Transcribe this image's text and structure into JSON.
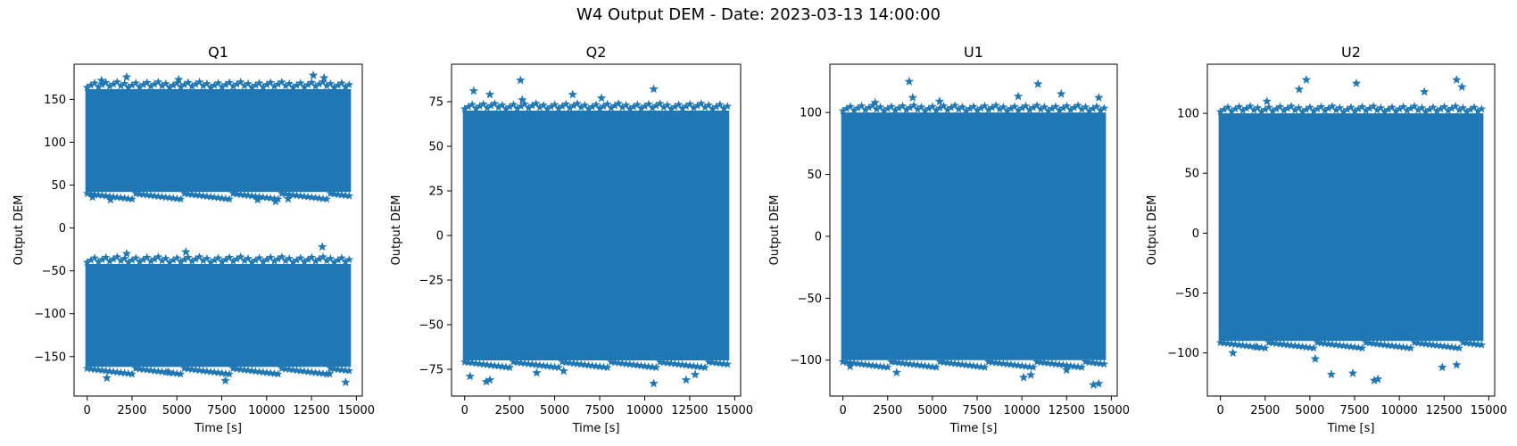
{
  "figure": {
    "suptitle": "W4 Output DEM - Date: 2023-03-13 14:00:00"
  },
  "chart_data": [
    {
      "type": "scatter",
      "title": "Q1",
      "xlabel": "Time [s]",
      "ylabel": "Output DEM",
      "marker": "star",
      "color": "#1f77b4",
      "xlim": [
        -730,
        15330
      ],
      "ylim": [
        -196,
        191
      ],
      "xticks": [
        0,
        2500,
        5000,
        7500,
        10000,
        12500,
        15000
      ],
      "yticks": [
        -150,
        -100,
        -50,
        0,
        50,
        100,
        150
      ],
      "x_range": [
        0,
        14600
      ],
      "bands": [
        {
          "min": 42,
          "max": 162
        },
        {
          "min": -162,
          "max": -42
        }
      ],
      "outliers": [
        {
          "x": 2200,
          "y": 176
        },
        {
          "x": 12600,
          "y": 178
        },
        {
          "x": 13200,
          "y": 175
        },
        {
          "x": 800,
          "y": 172
        },
        {
          "x": 5100,
          "y": 173
        },
        {
          "x": 300,
          "y": 36
        },
        {
          "x": 1300,
          "y": 33
        },
        {
          "x": 9500,
          "y": 33
        },
        {
          "x": 10500,
          "y": 31
        },
        {
          "x": 11200,
          "y": 34
        },
        {
          "x": 13100,
          "y": -22
        },
        {
          "x": 2200,
          "y": -30
        },
        {
          "x": 5500,
          "y": -28
        },
        {
          "x": 1100,
          "y": -175
        },
        {
          "x": 7700,
          "y": -178
        },
        {
          "x": 14400,
          "y": -180
        },
        {
          "x": 13500,
          "y": -170
        },
        {
          "x": 4500,
          "y": -168
        }
      ]
    },
    {
      "type": "scatter",
      "title": "Q2",
      "xlabel": "Time [s]",
      "ylabel": "Output DEM",
      "marker": "star",
      "color": "#1f77b4",
      "xlim": [
        -730,
        15330
      ],
      "ylim": [
        -90,
        96
      ],
      "xticks": [
        0,
        2500,
        5000,
        7500,
        10000,
        12500,
        15000
      ],
      "yticks": [
        -75,
        -50,
        -25,
        0,
        25,
        50,
        75
      ],
      "x_range": [
        0,
        14600
      ],
      "bands": [
        {
          "min": -70,
          "max": 70
        }
      ],
      "outliers": [
        {
          "x": 3100,
          "y": 87
        },
        {
          "x": 500,
          "y": 81
        },
        {
          "x": 10500,
          "y": 82
        },
        {
          "x": 3200,
          "y": 76
        },
        {
          "x": 1400,
          "y": 79
        },
        {
          "x": 6000,
          "y": 79
        },
        {
          "x": 7600,
          "y": 77
        },
        {
          "x": 300,
          "y": -79
        },
        {
          "x": 1200,
          "y": -82
        },
        {
          "x": 1400,
          "y": -81
        },
        {
          "x": 10500,
          "y": -83
        },
        {
          "x": 12300,
          "y": -81
        },
        {
          "x": 12800,
          "y": -78
        },
        {
          "x": 4000,
          "y": -77
        },
        {
          "x": 5500,
          "y": -76
        }
      ]
    },
    {
      "type": "scatter",
      "title": "U1",
      "xlabel": "Time [s]",
      "ylabel": "Output DEM",
      "marker": "star",
      "color": "#1f77b4",
      "xlim": [
        -730,
        15330
      ],
      "ylim": [
        -129,
        139
      ],
      "xticks": [
        0,
        2500,
        5000,
        7500,
        10000,
        12500,
        15000
      ],
      "yticks": [
        -100,
        -50,
        0,
        50,
        100
      ],
      "x_range": [
        0,
        14600
      ],
      "bands": [
        {
          "min": -100,
          "max": 100
        }
      ],
      "outliers": [
        {
          "x": 3700,
          "y": 125
        },
        {
          "x": 10900,
          "y": 123
        },
        {
          "x": 9800,
          "y": 113
        },
        {
          "x": 12200,
          "y": 115
        },
        {
          "x": 3900,
          "y": 112
        },
        {
          "x": 14300,
          "y": 112
        },
        {
          "x": 5400,
          "y": 109
        },
        {
          "x": 1800,
          "y": 108
        },
        {
          "x": 400,
          "y": -105
        },
        {
          "x": 3000,
          "y": -110
        },
        {
          "x": 10100,
          "y": -114
        },
        {
          "x": 10500,
          "y": -112
        },
        {
          "x": 14000,
          "y": -120
        },
        {
          "x": 14300,
          "y": -119
        },
        {
          "x": 12500,
          "y": -108
        }
      ]
    },
    {
      "type": "scatter",
      "title": "U2",
      "xlabel": "Time [s]",
      "ylabel": "Output DEM",
      "marker": "star",
      "color": "#1f77b4",
      "xlim": [
        -730,
        15330
      ],
      "ylim": [
        -136,
        141
      ],
      "xticks": [
        0,
        2500,
        5000,
        7500,
        10000,
        12500,
        15000
      ],
      "yticks": [
        -100,
        -50,
        0,
        50,
        100
      ],
      "x_range": [
        0,
        14600
      ],
      "bands": [
        {
          "min": -90,
          "max": 100
        }
      ],
      "outliers": [
        {
          "x": 4800,
          "y": 128
        },
        {
          "x": 13200,
          "y": 128
        },
        {
          "x": 7600,
          "y": 125
        },
        {
          "x": 13500,
          "y": 122
        },
        {
          "x": 4400,
          "y": 120
        },
        {
          "x": 11400,
          "y": 118
        },
        {
          "x": 2600,
          "y": 110
        },
        {
          "x": 700,
          "y": -100
        },
        {
          "x": 2000,
          "y": -95
        },
        {
          "x": 6200,
          "y": -118
        },
        {
          "x": 7400,
          "y": -117
        },
        {
          "x": 8600,
          "y": -123
        },
        {
          "x": 8800,
          "y": -122
        },
        {
          "x": 12400,
          "y": -112
        },
        {
          "x": 13200,
          "y": -110
        },
        {
          "x": 5300,
          "y": -105
        }
      ]
    }
  ]
}
